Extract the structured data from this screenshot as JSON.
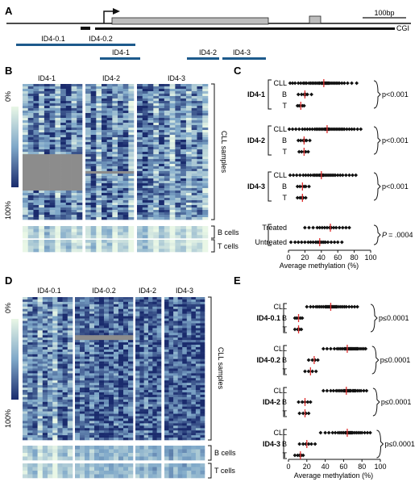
{
  "panels": {
    "A": "A",
    "B": "B",
    "C": "C",
    "D": "D",
    "E": "E"
  },
  "gene_map": {
    "scale_label": "100bp",
    "cgi_label": "CGI",
    "amplicons_row1": [
      "ID4-0.1",
      "ID4-0.2"
    ],
    "amplicons_row2": [
      "ID4-1",
      "ID4-2",
      "ID4-3"
    ],
    "colors": {
      "amplicon": "#1d5a8c",
      "exon": "#bdbdbd"
    }
  },
  "heatmap_B": {
    "column_labels": [
      "ID4-1",
      "ID4-2",
      "ID4-3"
    ],
    "scale_top": "0%",
    "scale_bottom": "100%",
    "group_labels": [
      "CLL samples",
      "B cells",
      "T cells"
    ]
  },
  "heatmap_D": {
    "column_labels": [
      "ID4-0.1",
      "ID4-0.2",
      "ID4-2",
      "ID4-3"
    ],
    "scale_top": "0%",
    "scale_bottom": "100%",
    "group_labels": [
      "CLL samples",
      "B cells",
      "T cells"
    ]
  },
  "colors": {
    "heat_low": "#e9f7e6",
    "heat_mid": "#7fa8c9",
    "heat_high": "#1a2b6d",
    "missing": "#8c8c8c",
    "mean_line": "#e03030"
  },
  "chart_data": [
    {
      "type": "scatter",
      "panel": "C",
      "xlabel": "Average methylation (%)",
      "xlim": [
        0,
        100
      ],
      "xticks": [
        0,
        20,
        40,
        60,
        80,
        100
      ],
      "groups": [
        {
          "name": "ID4-1",
          "rows": [
            {
              "label": "CLL",
              "mean": 43,
              "values": [
                2,
                5,
                8,
                12,
                15,
                18,
                20,
                22,
                25,
                27,
                29,
                31,
                33,
                35,
                37,
                38,
                40,
                41,
                42,
                43,
                44,
                45,
                46,
                47,
                48,
                49,
                50,
                52,
                54,
                56,
                58,
                60,
                62,
                65,
                68,
                72,
                77,
                83
              ]
            },
            {
              "label": "B",
              "mean": 20,
              "values": [
                12,
                16,
                19,
                21,
                23,
                28
              ]
            },
            {
              "label": "T",
              "mean": 15,
              "values": [
                11,
                13,
                15,
                17,
                19
              ]
            }
          ],
          "pvalue": "p<0.001"
        },
        {
          "name": "ID4-2",
          "rows": [
            {
              "label": "CLL",
              "mean": 47,
              "values": [
                1,
                5,
                9,
                13,
                17,
                20,
                23,
                26,
                29,
                32,
                34,
                36,
                38,
                40,
                42,
                44,
                45,
                46,
                47,
                48,
                49,
                50,
                52,
                54,
                56,
                58,
                60,
                62,
                64,
                66,
                68,
                71,
                74,
                77,
                80,
                84,
                88
              ]
            },
            {
              "label": "B",
              "mean": 19,
              "values": [
                12,
                15,
                18,
                20,
                22,
                26
              ]
            },
            {
              "label": "T",
              "mean": 19,
              "values": [
                13,
                16,
                19,
                21,
                24
              ]
            }
          ],
          "pvalue": "p<0.001"
        },
        {
          "name": "ID4-3",
          "rows": [
            {
              "label": "CLL",
              "mean": 40,
              "values": [
                2,
                6,
                10,
                14,
                18,
                21,
                24,
                27,
                30,
                32,
                34,
                36,
                38,
                39,
                40,
                41,
                42,
                43,
                45,
                47,
                49,
                51,
                53,
                55,
                57,
                60,
                63,
                66,
                70,
                74,
                78,
                82
              ]
            },
            {
              "label": "B",
              "mean": 17,
              "values": [
                11,
                14,
                17,
                19,
                21,
                25
              ]
            },
            {
              "label": "T",
              "mean": 17,
              "values": [
                11,
                14,
                16,
                18,
                21
              ]
            }
          ],
          "pvalue": "p<0.001"
        },
        {
          "name": "",
          "rows": [
            {
              "label": "Treated",
              "mean": 51,
              "values": [
                20,
                25,
                30,
                35,
                38,
                41,
                44,
                47,
                50,
                52,
                55,
                58,
                62,
                66,
                70,
                74
              ]
            },
            {
              "label": "Untreated",
              "mean": 38,
              "values": [
                3,
                8,
                12,
                16,
                20,
                24,
                27,
                30,
                33,
                35,
                37,
                39,
                41,
                43,
                45,
                48,
                52,
                56,
                60,
                65
              ]
            }
          ],
          "pvalue_prefix": "P",
          "pvalue": "= .0004"
        }
      ]
    },
    {
      "type": "scatter",
      "panel": "E",
      "xlabel": "Average methylation (%)",
      "xlim": [
        0,
        100
      ],
      "xticks": [
        0,
        20,
        40,
        60,
        80,
        100
      ],
      "groups": [
        {
          "name": "ID4-0.1",
          "rows": [
            {
              "label": "CLL",
              "mean": 46,
              "values": [
                20,
                24,
                27,
                30,
                32,
                34,
                36,
                38,
                40,
                41,
                42,
                43,
                44,
                45,
                46,
                47,
                48,
                49,
                50,
                51,
                52,
                53,
                55,
                57,
                59,
                61,
                63,
                66,
                69,
                72,
                75
              ]
            },
            {
              "label": "B",
              "mean": 11,
              "values": [
                7,
                9,
                11,
                13,
                15
              ]
            },
            {
              "label": "T",
              "mean": 11,
              "values": [
                7,
                10,
                12,
                14
              ]
            }
          ],
          "pvalue": "p≤0.0001"
        },
        {
          "name": "ID4-0.2",
          "rows": [
            {
              "label": "CLL",
              "mean": 64,
              "values": [
                38,
                42,
                46,
                50,
                53,
                55,
                57,
                59,
                61,
                62,
                63,
                64,
                65,
                66,
                67,
                68,
                69,
                70,
                71,
                72,
                73,
                74,
                75,
                76,
                78,
                80,
                82,
                84
              ]
            },
            {
              "label": "B",
              "mean": 28,
              "values": [
                22,
                26,
                29,
                32
              ]
            },
            {
              "label": "T",
              "mean": 24,
              "values": [
                18,
                22,
                26,
                30
              ]
            }
          ],
          "pvalue": "p≤0.0001"
        },
        {
          "name": "ID4-2",
          "rows": [
            {
              "label": "CLL",
              "mean": 63,
              "values": [
                38,
                42,
                46,
                49,
                52,
                54,
                56,
                58,
                60,
                61,
                62,
                63,
                64,
                65,
                66,
                67,
                68,
                70,
                71,
                72,
                73,
                75,
                77,
                79,
                82,
                85
              ]
            },
            {
              "label": "B",
              "mean": 18,
              "values": [
                11,
                15,
                18,
                21,
                24
              ]
            },
            {
              "label": "T",
              "mean": 18,
              "values": [
                12,
                16,
                19,
                22
              ]
            }
          ],
          "pvalue": "p≤0.0001"
        },
        {
          "name": "ID4-3",
          "rows": [
            {
              "label": "CLL",
              "mean": 64,
              "values": [
                35,
                40,
                44,
                48,
                51,
                54,
                56,
                58,
                60,
                62,
                63,
                64,
                65,
                66,
                67,
                68,
                69,
                70,
                72,
                74,
                76,
                78,
                80,
                83,
                86,
                89
              ]
            },
            {
              "label": "B",
              "mean": 20,
              "values": [
                12,
                16,
                19,
                22,
                25,
                29
              ]
            },
            {
              "label": "T",
              "mean": 13,
              "values": [
                7,
                10,
                12,
                14,
                16
              ]
            }
          ],
          "pvalue": "p≤0.0001"
        }
      ]
    }
  ]
}
